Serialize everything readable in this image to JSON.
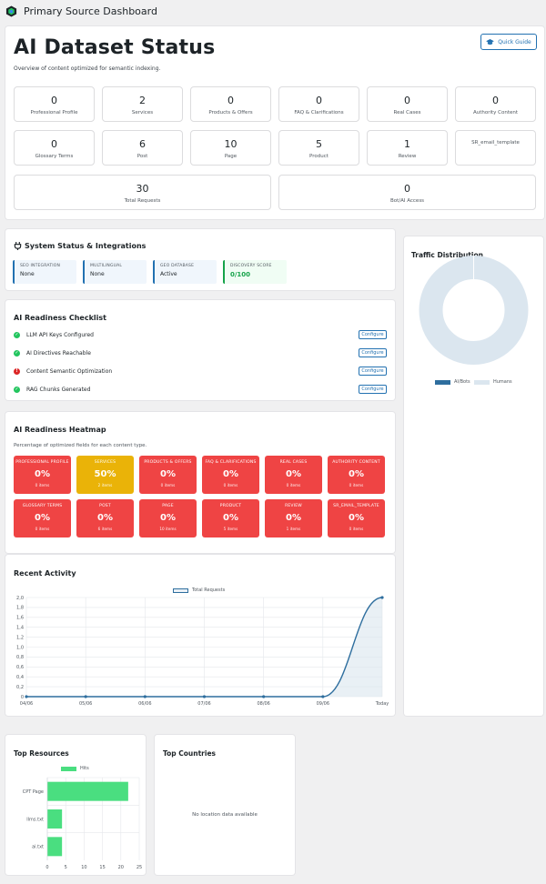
{
  "app": {
    "title": "Primary Source Dashboard"
  },
  "hero": {
    "title": "AI Dataset Status",
    "subtitle": "Overview of content optimized for semantic indexing.",
    "quick_guide": "Quick Guide"
  },
  "stats_row1": [
    {
      "value": "0",
      "label": "Professional Profile"
    },
    {
      "value": "2",
      "label": "Services"
    },
    {
      "value": "0",
      "label": "Products & Offers"
    },
    {
      "value": "0",
      "label": "FAQ & Clarifications"
    },
    {
      "value": "0",
      "label": "Real Cases"
    },
    {
      "value": "0",
      "label": "Authority Content"
    }
  ],
  "stats_row2": [
    {
      "value": "0",
      "label": "Glossary Terms"
    },
    {
      "value": "6",
      "label": "Post"
    },
    {
      "value": "10",
      "label": "Page"
    },
    {
      "value": "5",
      "label": "Product"
    },
    {
      "value": "1",
      "label": "Review"
    },
    {
      "value": "",
      "label": "SR_email_template"
    }
  ],
  "stats_row3": [
    {
      "value": "30",
      "label": "Total Requests"
    },
    {
      "value": "0",
      "label": "Bot/AI Access"
    }
  ],
  "system": {
    "title": "System Status & Integrations",
    "items": [
      {
        "key": "SEO INTEGRATION",
        "value": "None"
      },
      {
        "key": "MULTILINGUAL",
        "value": "None"
      },
      {
        "key": "GEO DATABASE",
        "value": "Active"
      },
      {
        "key": "DISCOVERY SCORE",
        "value": "0/100"
      }
    ]
  },
  "checklist": {
    "title": "AI Readiness Checklist",
    "configure_label": "Configure",
    "items": [
      {
        "label": "LLM API Keys Configured",
        "status": "ok"
      },
      {
        "label": "AI Directives Reachable",
        "status": "ok"
      },
      {
        "label": "Content Semantic Optimization",
        "status": "error"
      },
      {
        "label": "RAG Chunks Generated",
        "status": "ok"
      }
    ]
  },
  "heatmap": {
    "title": "AI Readiness Heatmap",
    "subtitle": "Percentage of optimized fields for each content type.",
    "colors": {
      "red": "#ef4444",
      "yellow": "#eab308"
    },
    "cells": [
      {
        "title": "PROFESSIONAL PROFILE",
        "pct": "0%",
        "items": "0 items",
        "color": "red"
      },
      {
        "title": "SERVICES",
        "pct": "50%",
        "items": "2 items",
        "color": "yellow"
      },
      {
        "title": "PRODUCTS & OFFERS",
        "pct": "0%",
        "items": "0 items",
        "color": "red"
      },
      {
        "title": "FAQ & CLARIFICATIONS",
        "pct": "0%",
        "items": "0 items",
        "color": "red"
      },
      {
        "title": "REAL CASES",
        "pct": "0%",
        "items": "0 items",
        "color": "red"
      },
      {
        "title": "AUTHORITY CONTENT",
        "pct": "0%",
        "items": "0 items",
        "color": "red"
      },
      {
        "title": "GLOSSARY TERMS",
        "pct": "0%",
        "items": "0 items",
        "color": "red"
      },
      {
        "title": "POST",
        "pct": "0%",
        "items": "6 items",
        "color": "red"
      },
      {
        "title": "PAGE",
        "pct": "0%",
        "items": "10 items",
        "color": "red"
      },
      {
        "title": "PRODUCT",
        "pct": "0%",
        "items": "5 items",
        "color": "red"
      },
      {
        "title": "REVIEW",
        "pct": "0%",
        "items": "1 items",
        "color": "red"
      },
      {
        "title": "SR_EMAIL_TEMPLATE",
        "pct": "0%",
        "items": "0 items",
        "color": "red"
      }
    ]
  },
  "activity": {
    "title": "Recent Activity"
  },
  "traffic": {
    "title": "Traffic Distribution"
  },
  "resources": {
    "title": "Top Resources"
  },
  "countries": {
    "title": "Top Countries",
    "empty": "No location data available"
  },
  "chart_data": [
    {
      "type": "line",
      "title": "Recent Activity",
      "x": [
        "04/06",
        "05/06",
        "06/06",
        "07/06",
        "08/06",
        "09/06",
        "Today"
      ],
      "series": [
        {
          "name": "Total Requests",
          "values": [
            0,
            0,
            0,
            0,
            0,
            0,
            2
          ],
          "color": "#2e6e9e"
        }
      ],
      "ylim": [
        0,
        2
      ],
      "yticks": [
        "2,0",
        "1,8",
        "1,6",
        "1,4",
        "1,2",
        "1,0",
        "0,8",
        "0,6",
        "0,4",
        "0,2",
        "0"
      ],
      "grid": true,
      "legend": "top"
    },
    {
      "type": "pie",
      "title": "Traffic Distribution",
      "categories": [
        "AI/Bots",
        "Humans"
      ],
      "values": [
        0,
        30
      ],
      "colors": [
        "#2e6e9e",
        "#dbe6ef"
      ],
      "legend": "bottom"
    },
    {
      "type": "bar",
      "title": "Top Resources",
      "orientation": "horizontal",
      "categories": [
        "CPT Page",
        "llms.txt",
        "ai.txt"
      ],
      "series": [
        {
          "name": "Hits",
          "values": [
            22,
            4,
            4
          ],
          "color": "#4ade80"
        }
      ],
      "xlim": [
        0,
        25
      ],
      "xticks": [
        "0",
        "5",
        "10",
        "15",
        "20",
        "25"
      ],
      "grid": true,
      "legend": "top"
    }
  ]
}
